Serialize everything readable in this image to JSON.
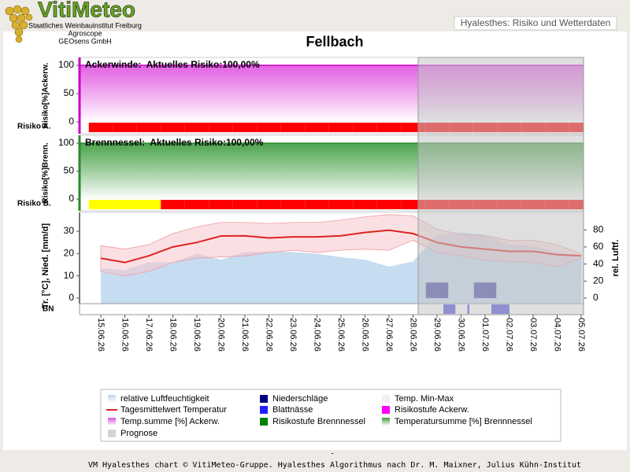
{
  "header": {
    "logo": "VitiMeteo",
    "org_lines": [
      "Staatliches Weinbauinstitut Freiburg",
      "Agroscope",
      "GEOsens GmbH"
    ],
    "page_title": "Hyalesthes: Risiko und Wetterdaten"
  },
  "chart_data": {
    "type": "multi-panel",
    "title": "Fellbach",
    "categories": [
      "15.06.26",
      "16.06.26",
      "17.06.26",
      "18.06.26",
      "19.06.26",
      "20.06.26",
      "21.06.26",
      "22.06.26",
      "23.06.26",
      "24.06.26",
      "25.06.26",
      "26.06.26",
      "27.06.26",
      "28.06.26",
      "29.06.26",
      "30.06.26",
      "01.07.26",
      "02.07.26",
      "03.07.26",
      "04.07.26",
      "05.07.26"
    ],
    "forecast_start": "28.06.26",
    "forecast_color": "#c4c4c4",
    "panels": [
      {
        "type": "risk",
        "title": "Ackerwinde:  Aktuelles Risiko:100,00%",
        "y_label": "Risiko[%]Ackerw.",
        "row_label": "Risiko A.",
        "ylim": [
          -21,
          114
        ],
        "yticks": [
          0,
          50,
          100
        ],
        "color": "#e050e0",
        "axis_color": "#cc00cc",
        "values": [
          100,
          100,
          100,
          100,
          100,
          100,
          100,
          100,
          100,
          100,
          100,
          100,
          100,
          100,
          100,
          100,
          100,
          100,
          100,
          100,
          100
        ],
        "risk_levels": [
          2,
          2,
          2,
          2,
          2,
          2,
          2,
          2,
          2,
          2,
          2,
          2,
          2,
          2,
          2,
          2,
          2,
          2,
          2,
          2,
          2
        ],
        "risk_level_colors": {
          "1": "#ffff00",
          "2": "#ff0000"
        }
      },
      {
        "type": "risk",
        "title": "Brennnessel:  Aktuelles Risiko:100,00%",
        "y_label": "Risiko[%]Brenn.",
        "row_label": "Risiko B.",
        "ylim": [
          -21,
          114
        ],
        "yticks": [
          0,
          50,
          100
        ],
        "color": "#3a9a3a",
        "axis_color": "#2a8a2a",
        "values": [
          100,
          100,
          100,
          100,
          100,
          100,
          100,
          100,
          100,
          100,
          100,
          100,
          100,
          100,
          100,
          100,
          100,
          100,
          100,
          100,
          100
        ],
        "risk_levels": [
          1,
          1,
          1,
          2,
          2,
          2,
          2,
          2,
          2,
          2,
          2,
          2,
          2,
          2,
          2,
          2,
          2,
          2,
          2,
          2,
          2
        ],
        "risk_level_colors": {
          "1": "#ffff00",
          "2": "#ff0000"
        }
      },
      {
        "type": "weather",
        "y_label": "Tr. [°C], Nied. [mm/d]",
        "y2_label": "rel. Luftf.",
        "ylim": [
          -2.5,
          38.5
        ],
        "yticks": [
          0,
          10,
          20,
          30
        ],
        "y2lim": [
          -6.5,
          100.5
        ],
        "y2ticks": [
          0,
          20,
          40,
          60,
          80
        ],
        "humidity": {
          "axis": "y2",
          "color": "#bcd6ee",
          "values": [
            35,
            33,
            42,
            42,
            52,
            45,
            54,
            55,
            54,
            52,
            48,
            45,
            37,
            43,
            74,
            77,
            74,
            63,
            61,
            54,
            49
          ]
        },
        "temp_max": {
          "values": [
            23.5,
            22,
            24,
            29,
            32,
            34,
            34,
            33.5,
            34,
            34,
            35,
            36.5,
            37.5,
            37,
            31,
            28.5,
            28,
            26,
            26,
            24,
            20
          ]
        },
        "temp_min": {
          "values": [
            12,
            10,
            12,
            16,
            18,
            18.5,
            19,
            20.5,
            21.5,
            20.5,
            21.5,
            22,
            21.5,
            26,
            20.5,
            19,
            17,
            16.5,
            16,
            14,
            18
          ]
        },
        "temp_band_color": "#f8c6cc",
        "temp_mean": {
          "color": "#dd2222",
          "values": [
            17.9,
            16,
            19,
            23,
            25,
            27.9,
            28,
            27,
            27.5,
            27.5,
            28,
            29.5,
            30.5,
            29,
            25,
            23,
            22,
            21,
            21,
            19.5,
            19
          ]
        },
        "precipitation": {
          "color": "#4848a8",
          "values": [
            0,
            0,
            0,
            0,
            0,
            0,
            0,
            0,
            0,
            0,
            0,
            0,
            0,
            0,
            7,
            0,
            7,
            0,
            0,
            0,
            0
          ]
        }
      },
      {
        "type": "leaf-wetness",
        "row_label": "BN",
        "color": "#5050e0",
        "values": [
          0,
          0,
          0,
          0,
          0,
          0,
          0,
          0,
          0,
          0,
          0,
          0,
          0,
          0,
          12,
          2,
          18,
          0,
          0,
          0,
          0
        ]
      }
    ],
    "legend": [
      {
        "name": "relative Luftfeuchtigkeit",
        "color": "#bcd6ee",
        "symbol": "area"
      },
      {
        "name": "Niederschläge",
        "color": "#000080",
        "symbol": "box"
      },
      {
        "name": "Temp. Min-Max",
        "color": "#f6eef0",
        "symbol": "box"
      },
      {
        "name": "Tagesmittelwert Temperatur",
        "color": "#dd2222",
        "symbol": "line"
      },
      {
        "name": "Blattnässe",
        "color": "#2020ff",
        "symbol": "box"
      },
      {
        "name": "Risikostufe Ackerw.",
        "color": "#ff00ff",
        "symbol": "box"
      },
      {
        "name": "Temp.summe [%] Ackerw.",
        "color": "#e050e0",
        "symbol": "area"
      },
      {
        "name": "Risikostufe Brennnessel",
        "color": "#008000",
        "symbol": "box"
      },
      {
        "name": "Temperatursumme [%] Brennnessel",
        "color": "#3a9a3a",
        "symbol": "area"
      },
      {
        "name": "Prognose",
        "color": "#d4d4d4",
        "symbol": "box"
      }
    ]
  },
  "footer": {
    "dash": "-",
    "credit": "VM Hyalesthes chart © VitiMeteo-Gruppe. Hyalesthes Algorithmus nach Dr. M. Maixner, Julius Kühn-Institut"
  }
}
